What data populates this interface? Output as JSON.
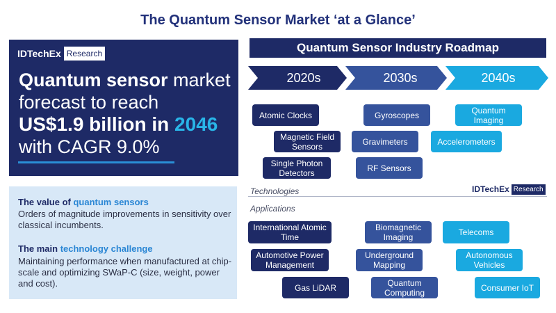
{
  "title": "The Quantum Sensor Market ‘at a Glance’",
  "brand": {
    "name": "IDTechEx",
    "tag": "Research"
  },
  "headline": {
    "l1_bold": "Quantum sensor",
    "l1_rest": " market",
    "l2": "forecast to reach",
    "l3_bold": "US$1.9 billion in ",
    "l3_year": "2046",
    "l4": "with CAGR 9.0%"
  },
  "info": {
    "value_head_a": "The value of ",
    "value_head_b": "quantum sensors",
    "value_body": "Orders of magnitude improvements in sensitivity over classical incumbents.",
    "challenge_head_a": "The main ",
    "challenge_head_b": "technology challenge",
    "challenge_body": "Maintaining performance when manufactured at chip-scale and optimizing SWaP-C (size, weight, power and cost)."
  },
  "roadmap": {
    "title": "Quantum Sensor Industry Roadmap",
    "decades": [
      "2020s",
      "2030s",
      "2040s"
    ],
    "technologies_label": "Technologies",
    "applications_label": "Applications",
    "technologies": {
      "d2020": [
        "Atomic Clocks",
        "Magnetic Field Sensors",
        "Single Photon Detectors"
      ],
      "d2030": [
        "Gyroscopes",
        "Gravimeters",
        "RF Sensors"
      ],
      "d2040": [
        "Quantum Imaging",
        "Accelerometers"
      ]
    },
    "applications": {
      "d2020": [
        "International Atomic Time",
        "Automotive Power Management",
        "Gas LiDAR"
      ],
      "d2030": [
        "Biomagnetic Imaging",
        "Underground Mapping",
        "Quantum Computing"
      ],
      "d2040": [
        "Telecoms",
        "Autonomous Vehicles",
        "Consumer IoT"
      ]
    }
  },
  "colors": {
    "navy": "#1e2a66",
    "mid_blue": "#35539c",
    "cyan": "#1aa9e0"
  }
}
